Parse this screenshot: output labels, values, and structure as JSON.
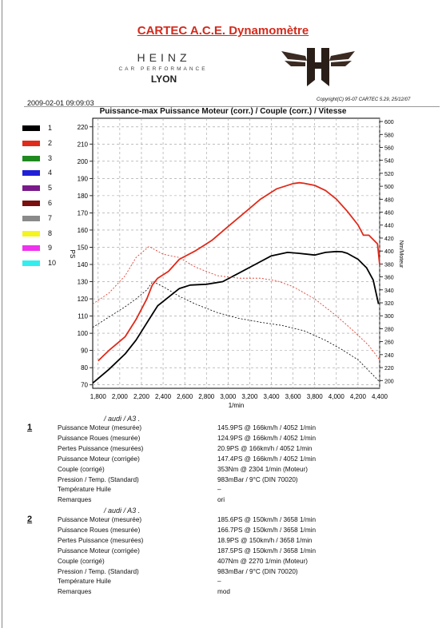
{
  "header": {
    "title": "CARTEC A.C.E. Dynamomètre",
    "brand": "HEINZ",
    "tagline": "CAR PERFORMANCE",
    "city": "LYON",
    "datetime": "2009-02-01 09:09:03",
    "copyright": "Copyright(C) 95-07 CARTEC 5.29, 25/12/07"
  },
  "legend": [
    {
      "label": "1",
      "color": "#000000"
    },
    {
      "label": "2",
      "color": "#e02a1a"
    },
    {
      "label": "3",
      "color": "#1f8a1f"
    },
    {
      "label": "4",
      "color": "#2020d8"
    },
    {
      "label": "5",
      "color": "#7a1a8a"
    },
    {
      "label": "6",
      "color": "#7a1010"
    },
    {
      "label": "7",
      "color": "#8a8a8a"
    },
    {
      "label": "8",
      "color": "#f4f420"
    },
    {
      "label": "9",
      "color": "#ee33ee"
    },
    {
      "label": "10",
      "color": "#33eeee"
    }
  ],
  "chart_data": {
    "type": "line",
    "title": "Puissance-max Puissance Moteur (corr.) / Couple (corr.) / Vitesse",
    "xlabel": "1/min",
    "ylabel_left": "PS",
    "ylabel_right": "Nm/Moteur",
    "xlim": [
      1750,
      4400
    ],
    "ylim_left": [
      68,
      225
    ],
    "ylim_right": [
      188,
      605
    ],
    "x_ticks": [
      "1,800",
      "2,000",
      "2,200",
      "2,400",
      "2,600",
      "2,800",
      "3,000",
      "3,200",
      "3,400",
      "3,600",
      "3,800",
      "4,000",
      "4,200",
      "4,400"
    ],
    "y_ticks_left": [
      "70",
      "80",
      "90",
      "100",
      "110",
      "120",
      "130",
      "140",
      "150",
      "160",
      "170",
      "180",
      "190",
      "200",
      "210",
      "220"
    ],
    "y_ticks_right": [
      "200",
      "220",
      "240",
      "260",
      "280",
      "300",
      "320",
      "340",
      "360",
      "380",
      "400",
      "420",
      "440",
      "460",
      "480",
      "500",
      "520",
      "540",
      "560",
      "580",
      "600"
    ],
    "grid": true,
    "series": [
      {
        "name": "1",
        "axis": "left",
        "style": "solid",
        "color": "#000000",
        "x": [
          1750,
          1900,
          2050,
          2150,
          2250,
          2300,
          2350,
          2450,
          2550,
          2650,
          2800,
          2950,
          3100,
          3250,
          3400,
          3550,
          3650,
          3800,
          3900,
          4000,
          4052,
          4100,
          4200,
          4280,
          4340,
          4390
        ],
        "y": [
          71,
          79,
          88,
          96,
          106,
          111,
          116,
          121,
          126,
          128,
          128.5,
          130,
          135,
          140,
          145,
          147,
          146.5,
          145.5,
          147,
          147.5,
          147.4,
          146.5,
          143,
          138,
          131,
          117
        ]
      },
      {
        "name": "1",
        "axis": "right",
        "style": "dash",
        "color": "#000000",
        "x": [
          1750,
          1900,
          2050,
          2150,
          2250,
          2304,
          2400,
          2550,
          2700,
          2900,
          3100,
          3300,
          3500,
          3700,
          3900,
          4050,
          4200,
          4300,
          4400
        ],
        "y": [
          282,
          298,
          314,
          326,
          340,
          353,
          345,
          330,
          318,
          305,
          296,
          290,
          285,
          277,
          262,
          248,
          232,
          215,
          198
        ]
      },
      {
        "name": "2",
        "axis": "left",
        "style": "solid",
        "color": "#e02a1a",
        "x": [
          1800,
          1900,
          2050,
          2150,
          2250,
          2300,
          2350,
          2450,
          2550,
          2700,
          2850,
          3000,
          3150,
          3300,
          3450,
          3600,
          3658,
          3700,
          3800,
          3900,
          4000,
          4100,
          4200,
          4250,
          4300,
          4380,
          4400
        ],
        "y": [
          84,
          90,
          98,
          108,
          120,
          128,
          132,
          136,
          143,
          148,
          154,
          162,
          170,
          178,
          184,
          187,
          187.5,
          187.2,
          186,
          183,
          178,
          171,
          163,
          157,
          157,
          152,
          140
        ]
      },
      {
        "name": "2",
        "axis": "right",
        "style": "dash",
        "color": "#e02a1a",
        "x": [
          1750,
          1900,
          2050,
          2150,
          2270,
          2400,
          2550,
          2700,
          2900,
          3100,
          3300,
          3450,
          3600,
          3800,
          4000,
          4150,
          4300,
          4400
        ],
        "y": [
          318,
          335,
          362,
          390,
          407,
          395,
          390,
          375,
          362,
          358,
          358,
          354,
          345,
          326,
          300,
          278,
          254,
          232
        ]
      }
    ]
  },
  "results": [
    {
      "num": "1",
      "name": "/ audi / A3 .",
      "rows": [
        {
          "label": "Puissance Moteur (mesurée)",
          "value": "145.9PS @ 166km/h / 4052 1/min"
        },
        {
          "label": "Puissance Roues (mesurée)",
          "value": "124.9PS @ 166km/h / 4052 1/min"
        },
        {
          "label": "Pertes Puissance (mesurées)",
          "value": "20.9PS @ 166km/h / 4052 1/min"
        },
        {
          "label": "Puissance Moteur (corrigée)",
          "value": "147.4PS @ 166km/h / 4052 1/min"
        },
        {
          "label": "Couple (corrigé)",
          "value": "353Nm @ 2304 1/min (Moteur)"
        },
        {
          "label": "Pression / Temp. (Standard)",
          "value": "983mBar / 9°C  (DIN 70020)"
        },
        {
          "label": "Température Huile",
          "value": "–"
        },
        {
          "label": "Remarques",
          "value": "ori"
        }
      ]
    },
    {
      "num": "2",
      "name": "/ audi / A3 .",
      "rows": [
        {
          "label": "Puissance Moteur (mesurée)",
          "value": "185.6PS @ 150km/h / 3658 1/min"
        },
        {
          "label": "Puissance Roues (mesurée)",
          "value": "166.7PS @ 150km/h / 3658 1/min"
        },
        {
          "label": "Pertes Puissance (mesurées)",
          "value": "18.9PS @ 150km/h / 3658 1/min"
        },
        {
          "label": "Puissance Moteur (corrigée)",
          "value": "187.5PS @ 150km/h / 3658 1/min"
        },
        {
          "label": "Couple (corrigé)",
          "value": "407Nm @ 2270 1/min (Moteur)"
        },
        {
          "label": "Pression / Temp. (Standard)",
          "value": "983mBar / 9°C  (DIN 70020)"
        },
        {
          "label": "Température Huile",
          "value": "–"
        },
        {
          "label": "Remarques",
          "value": "mod"
        }
      ]
    }
  ]
}
